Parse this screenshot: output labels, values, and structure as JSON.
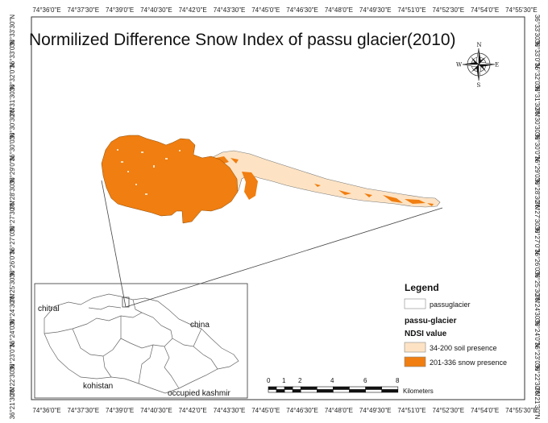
{
  "map": {
    "title": "Normilized Difference Snow Index of passu glacier(2010)",
    "longitude_ticks": [
      "74°36'0\"E",
      "74°37'30\"E",
      "74°39'0\"E",
      "74°40'30\"E",
      "74°42'0\"E",
      "74°43'30\"E",
      "74°45'0\"E",
      "74°46'30\"E",
      "74°48'0\"E",
      "74°49'30\"E",
      "74°51'0\"E",
      "74°52'30\"E",
      "74°54'0\"E",
      "74°55'30\"E"
    ],
    "latitude_ticks": [
      "36°33'30\"N",
      "36°33'0\"N",
      "36°32'0\"N",
      "36°31'30\"N",
      "36°30'30\"N",
      "36°30'0\"N",
      "36°29'0\"N",
      "36°28'30\"N",
      "36°27'30\"N",
      "36°27'0\"N",
      "36°26'0\"N",
      "36°25'30\"N",
      "36°24'30\"N",
      "36°24'0\"N",
      "36°23'0\"N",
      "36°22'30\"N",
      "36°21'30\"N"
    ],
    "right_latitude_ticks": [
      "36°33'30\"N",
      "36°33'0\"N",
      "36°32'0\"N",
      "36°31'30\"N",
      "36°30'30\"N",
      "36°30'0\"N",
      "36°29'0\"N",
      "36°28'30\"N",
      "36°27'30\"N",
      "36°27'0\"N",
      "36°26'0\"N",
      "36°25'30\"N",
      "36°24'30\"N",
      "36°24'0\"N",
      "36°23'0\"N",
      "36°22'30\"N",
      "36°21'30\"N"
    ],
    "colors": {
      "snow": "#f07e10",
      "soil": "#fde3c4",
      "outline": "#555555"
    }
  },
  "compass": {
    "n": "N",
    "s": "S",
    "e": "E",
    "w": "W"
  },
  "inset": {
    "labels": {
      "chitral": "chitral",
      "china": "china",
      "kohistan": "kohistan",
      "occupied_kashmir": "occupied kashmir"
    }
  },
  "legend": {
    "title": "Legend",
    "passu_item": "passuglacier",
    "layer_name": "passu-glacier",
    "field_name": "NDSI value",
    "class_soil": "34-200 soil presence",
    "class_snow": "201-336 snow presence"
  },
  "scale": {
    "labels": [
      "0",
      "1",
      "2",
      "4",
      "6",
      "8"
    ],
    "unit": "Kilometers"
  }
}
